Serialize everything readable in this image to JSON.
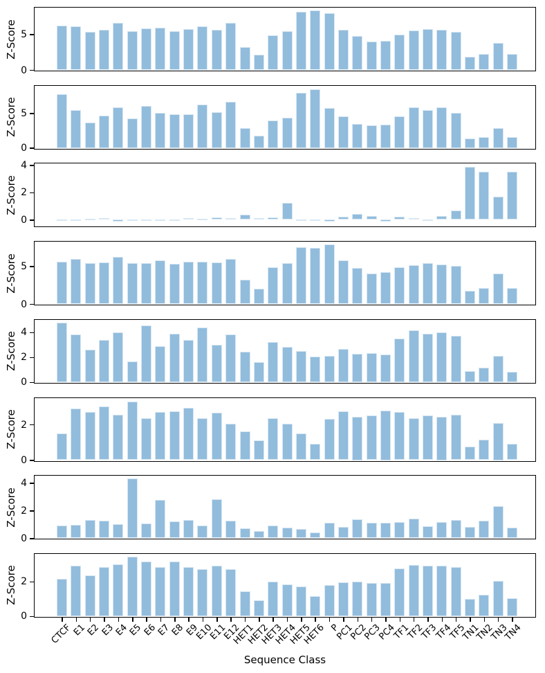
{
  "figure": {
    "background": "#ffffff",
    "bar_color": "#92bcdc",
    "bar_edge_color": "#d7e7f3",
    "axis_color": "#000000"
  },
  "chart_data": {
    "type": "bar",
    "title": "",
    "xlabel": "Sequence Class",
    "shared_ylabel": "Z-Score",
    "layout": {
      "grid": false,
      "legend": "none",
      "x_tick_rotation": 45,
      "stacked_panels": 8
    },
    "categories": [
      "CTCF",
      "E1",
      "E2",
      "E3",
      "E4",
      "E5",
      "E6",
      "E7",
      "E8",
      "E9",
      "E10",
      "E11",
      "E12",
      "HET1",
      "HET2",
      "HET3",
      "HET4",
      "HET5",
      "HET6",
      "P",
      "PC1",
      "PC2",
      "PC3",
      "PC4",
      "TF1",
      "TF2",
      "TF3",
      "TF4",
      "TF5",
      "TN1",
      "TN2",
      "TN3",
      "TN4"
    ],
    "panels": [
      {
        "ylabel": "Z-Score",
        "ylim": [
          0,
          8.7
        ],
        "yticks": [
          0,
          5
        ],
        "values": [
          6.2,
          6.1,
          5.3,
          5.6,
          6.6,
          5.4,
          5.8,
          5.9,
          5.4,
          5.7,
          6.1,
          5.6,
          6.6,
          3.2,
          2.1,
          4.8,
          5.4,
          8.1,
          8.3,
          7.9,
          5.6,
          4.7,
          4.0,
          4.1,
          4.9,
          5.5,
          5.7,
          5.6,
          5.3,
          1.8,
          2.2,
          3.8,
          2.2
        ]
      },
      {
        "ylabel": "Z-Score",
        "ylim": [
          0,
          9.0
        ],
        "yticks": [
          0,
          5
        ],
        "values": [
          7.8,
          5.5,
          3.7,
          4.7,
          5.9,
          4.3,
          6.1,
          5.1,
          4.9,
          4.9,
          6.3,
          5.2,
          6.7,
          2.9,
          1.8,
          4.0,
          4.4,
          8.0,
          8.5,
          5.8,
          4.6,
          3.5,
          3.3,
          3.4,
          4.6,
          5.9,
          5.5,
          5.9,
          5.1,
          1.4,
          1.6,
          2.9,
          1.6
        ]
      },
      {
        "ylabel": "Z-Score",
        "ylim": [
          -0.45,
          4.1
        ],
        "yticks": [
          0,
          2,
          4
        ],
        "values": [
          -0.08,
          -0.03,
          0.05,
          0.13,
          -0.13,
          -0.05,
          0.04,
          -0.02,
          0.03,
          0.13,
          0.06,
          0.18,
          0.13,
          0.38,
          0.1,
          0.18,
          1.25,
          -0.1,
          -0.1,
          -0.13,
          0.22,
          0.45,
          0.28,
          -0.13,
          0.23,
          0.12,
          -0.05,
          0.3,
          0.7,
          3.85,
          3.5,
          1.7,
          3.5
        ]
      },
      {
        "ylabel": "Z-Score",
        "ylim": [
          0,
          8.2
        ],
        "yticks": [
          0,
          5
        ],
        "values": [
          5.6,
          5.9,
          5.4,
          5.5,
          6.2,
          5.4,
          5.4,
          5.7,
          5.3,
          5.6,
          5.6,
          5.5,
          5.9,
          3.2,
          2.0,
          4.8,
          5.4,
          7.5,
          7.4,
          7.8,
          5.7,
          4.7,
          4.0,
          4.2,
          4.8,
          5.1,
          5.4,
          5.2,
          5.0,
          1.7,
          2.1,
          4.0,
          2.1
        ]
      },
      {
        "ylabel": "Z-Score",
        "ylim": [
          0,
          5.0
        ],
        "yticks": [
          0,
          2,
          4
        ],
        "values": [
          4.75,
          3.8,
          2.6,
          3.35,
          4.0,
          1.65,
          4.55,
          2.9,
          3.85,
          3.4,
          4.35,
          3.0,
          3.8,
          2.45,
          1.6,
          3.2,
          2.8,
          2.5,
          2.05,
          2.1,
          2.65,
          2.25,
          2.3,
          2.2,
          3.5,
          4.15,
          3.85,
          4.0,
          3.7,
          0.85,
          1.15,
          2.1,
          0.8
        ]
      },
      {
        "ylabel": "Z-Score",
        "ylim": [
          0,
          3.5
        ],
        "yticks": [
          0,
          2
        ],
        "values": [
          1.5,
          2.9,
          2.7,
          3.0,
          2.55,
          3.3,
          2.35,
          2.7,
          2.75,
          2.95,
          2.35,
          2.65,
          2.05,
          1.6,
          1.1,
          2.35,
          2.05,
          1.5,
          0.9,
          2.3,
          2.75,
          2.45,
          2.5,
          2.8,
          2.7,
          2.35,
          2.5,
          2.45,
          2.55,
          0.75,
          1.15,
          2.1,
          0.9
        ]
      },
      {
        "ylabel": "Z-Score",
        "ylim": [
          0,
          4.5
        ],
        "yticks": [
          0,
          2,
          4
        ],
        "values": [
          0.9,
          0.95,
          1.3,
          1.25,
          1.0,
          4.3,
          1.05,
          2.75,
          1.2,
          1.3,
          0.9,
          2.8,
          1.25,
          0.7,
          0.5,
          0.9,
          0.75,
          0.65,
          0.4,
          1.1,
          0.8,
          1.35,
          1.1,
          1.1,
          1.15,
          1.4,
          0.85,
          1.15,
          1.3,
          0.8,
          1.25,
          2.3,
          0.75
        ]
      },
      {
        "ylabel": "Z-Score",
        "ylim": [
          0,
          3.6
        ],
        "yticks": [
          0,
          2
        ],
        "values": [
          2.15,
          2.9,
          2.35,
          2.85,
          3.0,
          3.45,
          3.15,
          2.85,
          3.15,
          2.85,
          2.7,
          2.9,
          2.7,
          1.45,
          0.9,
          2.0,
          1.85,
          1.7,
          1.15,
          1.8,
          1.95,
          2.0,
          1.9,
          1.9,
          2.75,
          2.95,
          2.9,
          2.9,
          2.85,
          1.0,
          1.25,
          2.05,
          1.05
        ]
      }
    ]
  }
}
